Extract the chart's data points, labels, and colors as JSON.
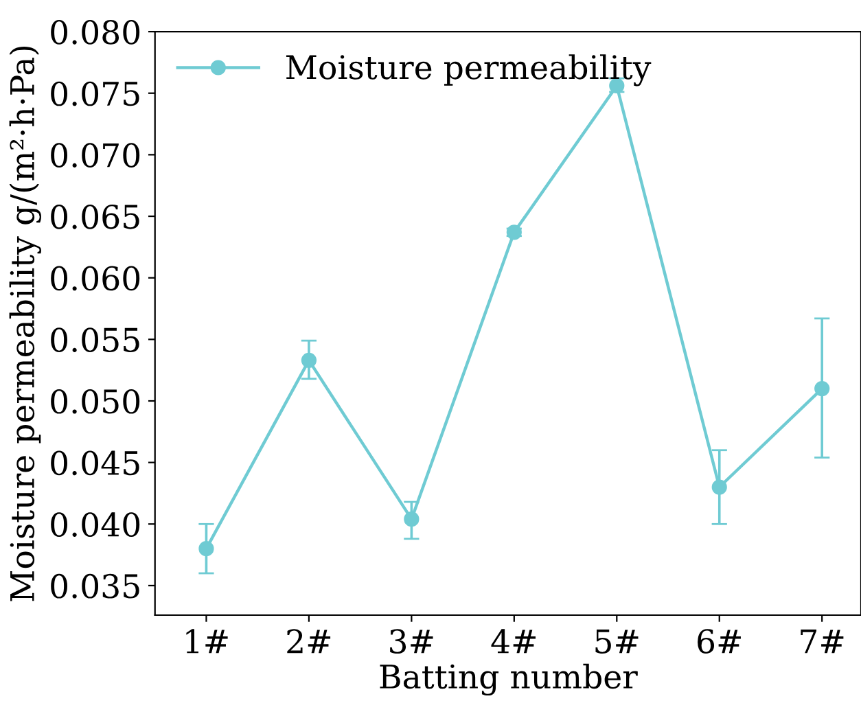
{
  "chart_data": {
    "type": "line",
    "xlabel": "Batting number",
    "ylabel": "Moisture permeability g/(m²·h·Pa)",
    "categories": [
      "1#",
      "2#",
      "3#",
      "4#",
      "5#",
      "6#",
      "7#"
    ],
    "series": [
      {
        "name": "Moisture permeability",
        "color": "#6fcbd3",
        "values": [
          0.038,
          0.0533,
          0.0404,
          0.0637,
          0.0756,
          0.043,
          0.051
        ],
        "errors": [
          [
            0.036,
            0.04
          ],
          [
            0.0518,
            0.0549
          ],
          [
            0.0388,
            0.0418
          ],
          [
            0.0634,
            0.064
          ],
          [
            0.0751,
            0.0762
          ],
          [
            0.04,
            0.046
          ],
          [
            0.0454,
            0.0567
          ]
        ]
      }
    ],
    "ylim": [
      0.0326,
      0.08
    ],
    "yticks": [
      {
        "value": 0.035,
        "label": "0.035"
      },
      {
        "value": 0.04,
        "label": "0.040"
      },
      {
        "value": 0.045,
        "label": "0.045"
      },
      {
        "value": 0.05,
        "label": "0.050"
      },
      {
        "value": 0.055,
        "label": "0.055"
      },
      {
        "value": 0.06,
        "label": "0.060"
      },
      {
        "value": 0.065,
        "label": "0.065"
      },
      {
        "value": 0.07,
        "label": "0.070"
      },
      {
        "value": 0.075,
        "label": "0.075"
      },
      {
        "value": 0.08,
        "label": "0.080"
      }
    ],
    "marker": "circle",
    "line_style": "solid",
    "legend": "top left",
    "grid": false
  }
}
